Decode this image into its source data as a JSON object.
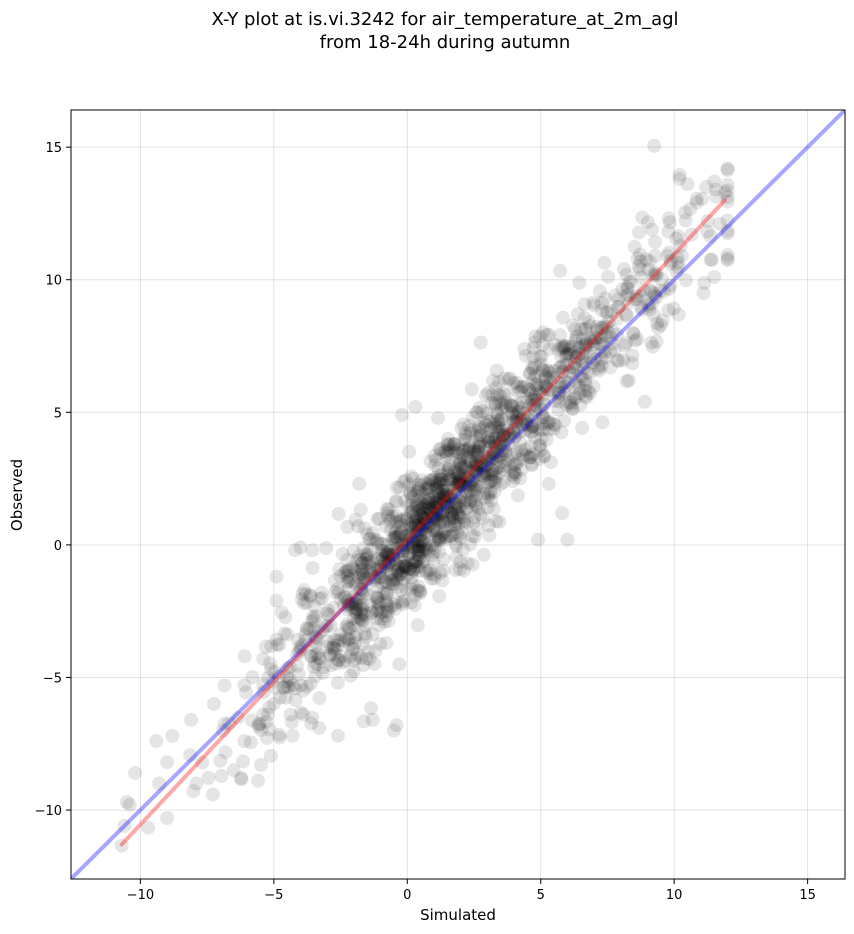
{
  "chart_data": {
    "type": "scatter",
    "title_line1": "X-Y plot at is.vi.3242 for air_temperature_at_2m_agl",
    "title_line2": "from 18-24h during autumn",
    "xlabel": "Simulated",
    "ylabel": "Observed",
    "xlim": [
      -12.6,
      16.4
    ],
    "ylim": [
      -12.6,
      16.4
    ],
    "xticks": [
      -10,
      -5,
      0,
      5,
      10,
      15
    ],
    "yticks": [
      -10,
      -5,
      0,
      5,
      10,
      15
    ],
    "xtick_labels": [
      "−10",
      "−5",
      "0",
      "5",
      "10",
      "15"
    ],
    "ytick_labels": [
      "−10",
      "−5",
      "0",
      "5",
      "10",
      "15"
    ],
    "grid": true,
    "point_color": "#000000",
    "point_alpha": 0.1,
    "point_count": 1600,
    "cloud": {
      "x_range": [
        -10.7,
        12.0
      ],
      "x_mean": 3.2,
      "x_sd": 3.8,
      "fit_slope": 1.08,
      "fit_intercept": 0.0,
      "residual_sd": 1.25
    },
    "series": [
      {
        "id": "one-to-one",
        "color": "#0000ff",
        "alpha": 0.35,
        "x": [
          -12.6,
          16.4
        ],
        "y": [
          -12.6,
          16.4
        ]
      },
      {
        "id": "regression",
        "color": "#ff0000",
        "alpha": 0.35,
        "x": [
          -10.7,
          11.9
        ],
        "y": [
          -11.3,
          13.0
        ]
      }
    ],
    "points": [
      [
        9.25,
        15.05
      ],
      [
        11.9,
        13.3
      ],
      [
        11.2,
        13.5
      ],
      [
        10.2,
        13.8
      ],
      [
        10.5,
        13.6
      ],
      [
        11.5,
        10.1
      ],
      [
        12.0,
        10.8
      ],
      [
        11.1,
        9.5
      ],
      [
        8.9,
        5.4
      ],
      [
        8.3,
        6.2
      ],
      [
        6.0,
        0.2
      ],
      [
        5.8,
        1.2
      ],
      [
        4.9,
        0.2
      ],
      [
        5.3,
        2.3
      ],
      [
        1.7,
        2.3
      ],
      [
        0.3,
        5.2
      ],
      [
        -0.2,
        4.9
      ],
      [
        -1.8,
        2.3
      ],
      [
        -4.2,
        -0.2
      ],
      [
        -4.0,
        -0.1
      ],
      [
        -4.9,
        -1.2
      ],
      [
        -4.9,
        -2.1
      ],
      [
        -5.4,
        -4.3
      ],
      [
        -6.1,
        -4.2
      ],
      [
        -10.5,
        -9.7
      ],
      [
        -10.6,
        -10.6
      ],
      [
        -10.2,
        -8.6
      ],
      [
        -9.0,
        -10.3
      ],
      [
        -8.1,
        -6.6
      ],
      [
        -7.9,
        -9.0
      ],
      [
        -6.5,
        -8.5
      ],
      [
        -6.1,
        -7.4
      ],
      [
        -4.3,
        -7.2
      ],
      [
        -3.3,
        -6.9
      ],
      [
        -2.6,
        -7.2
      ],
      [
        -0.4,
        -6.8
      ],
      [
        -0.5,
        -7.0
      ],
      [
        -1.3,
        -6.6
      ],
      [
        -0.3,
        -4.5
      ],
      [
        -1.2,
        -4.0
      ],
      [
        -2.6,
        -5.2
      ],
      [
        -3.9,
        -5.5
      ],
      [
        -4.4,
        -4.6
      ],
      [
        -3.6,
        -4.2
      ],
      [
        -9.4,
        -7.4
      ],
      [
        -9.0,
        -8.2
      ],
      [
        -8.8,
        -7.2
      ],
      [
        -9.3,
        -9.0
      ],
      [
        -10.4,
        -9.8
      ],
      [
        -6.9,
        -7.0
      ]
    ]
  }
}
